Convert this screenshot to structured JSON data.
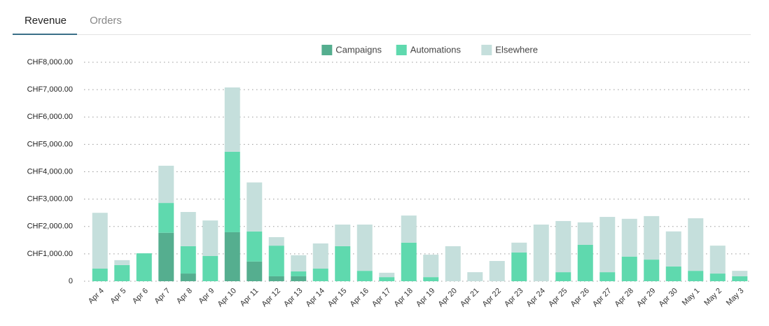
{
  "tabs": [
    "Revenue",
    "Orders"
  ],
  "chart_data": {
    "type": "stacked_bar",
    "categories": [
      "Apr 4",
      "Apr 5",
      "Apr 6",
      "Apr 7",
      "Apr 8",
      "Apr 9",
      "Apr 10",
      "Apr 11",
      "Apr 12",
      "Apr 13",
      "Apr 14",
      "Apr 15",
      "Apr 16",
      "Apr 17",
      "Apr 18",
      "Apr 19",
      "Apr 20",
      "Apr 21",
      "Apr 22",
      "Apr 23",
      "Apr 24",
      "Apr 25",
      "Apr 26",
      "Apr 27",
      "Apr 28",
      "Apr 29",
      "Apr 30",
      "May 1",
      "May 2",
      "May 3"
    ],
    "series": [
      {
        "name": "Campaigns",
        "color": "#55ae8f",
        "values": [
          0,
          0,
          0,
          1770,
          280,
          0,
          1790,
          720,
          180,
          180,
          0,
          0,
          0,
          0,
          0,
          0,
          0,
          0,
          0,
          0,
          0,
          0,
          0,
          0,
          0,
          0,
          0,
          0,
          0,
          0
        ]
      },
      {
        "name": "Automations",
        "color": "#5fd9ae",
        "values": [
          460,
          590,
          1020,
          1090,
          1000,
          920,
          2940,
          1100,
          1120,
          180,
          460,
          1280,
          380,
          150,
          1410,
          150,
          0,
          0,
          0,
          1050,
          0,
          330,
          1330,
          330,
          900,
          790,
          540,
          380,
          280,
          180
        ]
      },
      {
        "name": "Elsewhere",
        "color": "#c5dfdc",
        "values": [
          2040,
          180,
          0,
          1360,
          1250,
          1300,
          2350,
          1790,
          310,
          590,
          920,
          790,
          1690,
          160,
          990,
          820,
          1280,
          330,
          740,
          360,
          2070,
          1870,
          820,
          2020,
          1380,
          1590,
          1280,
          1920,
          1020,
          200
        ]
      }
    ],
    "ylim": [
      0,
      8000
    ],
    "yticks": [
      0,
      {
        "value": 1000,
        "label": "CHF1,000.00"
      },
      {
        "value": 2000,
        "label": "CHF2,000.00"
      },
      {
        "value": 3000,
        "label": "CHF3,000.00"
      },
      {
        "value": 4000,
        "label": "CHF4,000.00"
      },
      {
        "value": 5000,
        "label": "CHF5,000.00"
      },
      {
        "value": 6000,
        "label": "CHF6,000.00"
      },
      {
        "value": 7000,
        "label": "CHF7,000.00"
      },
      {
        "value": 8000,
        "label": "CHF8,000.00"
      }
    ],
    "grid": true,
    "legend": "top"
  }
}
